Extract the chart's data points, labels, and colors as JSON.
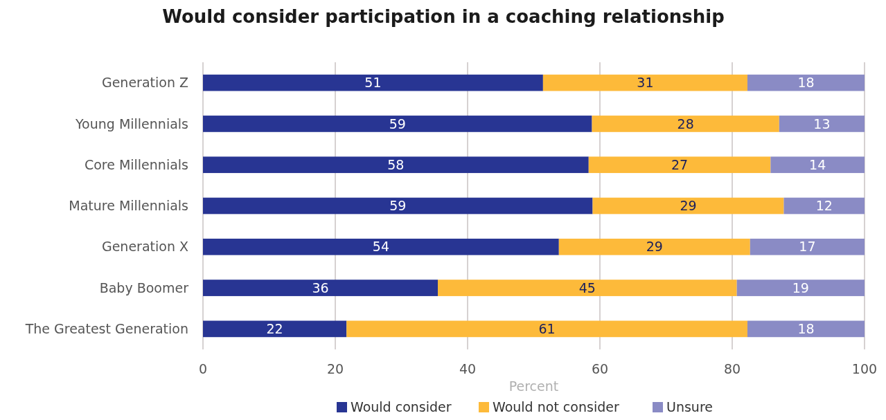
{
  "chart_data": {
    "type": "bar",
    "orientation": "horizontal",
    "stacked": true,
    "title": "Would consider participation in a coaching relationship",
    "xlabel": "Percent",
    "categories": [
      "Generation Z",
      "Young Millennials",
      "Core Millennials",
      "Mature Millennials",
      "Generation X",
      "Baby Boomer",
      "The Greatest Generation"
    ],
    "series": [
      {
        "name": "Would consider",
        "color": "#283593",
        "values": [
          51.4,
          58.8,
          58.3,
          58.9,
          53.8,
          35.5,
          21.7
        ],
        "value_labels": [
          "51",
          "59",
          "58",
          "59",
          "54",
          "36",
          "22"
        ]
      },
      {
        "name": "Would not consider",
        "color": "#fdba3a",
        "values": [
          30.9,
          28.3,
          27.5,
          28.9,
          28.9,
          45.2,
          60.6
        ],
        "value_labels": [
          "31",
          "28",
          "27",
          "29",
          "29",
          "45",
          "61"
        ]
      },
      {
        "name": "Unsure",
        "color": "#8a8bc5",
        "values": [
          17.7,
          12.9,
          14.2,
          12.2,
          17.3,
          19.3,
          17.7
        ],
        "value_labels": [
          "18",
          "13",
          "14",
          "12",
          "17",
          "19",
          "18"
        ]
      }
    ],
    "xlim": [
      0,
      100
    ],
    "xticks": [
      0,
      20,
      40,
      60,
      80,
      100
    ],
    "grid": "x",
    "legend": "bottom"
  }
}
